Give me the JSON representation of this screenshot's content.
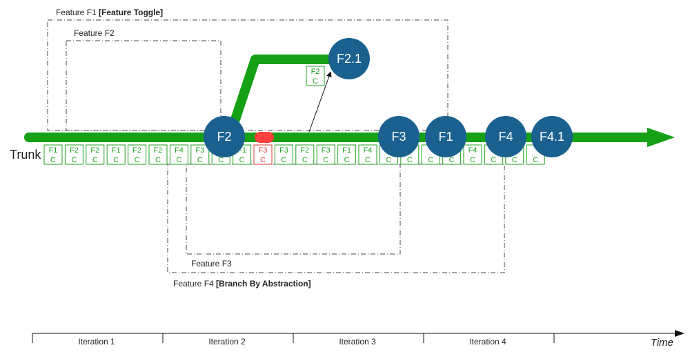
{
  "trunk_label": "Trunk",
  "time_label": "Time",
  "colors": {
    "trunk": "#16a016",
    "node": "#1a6190",
    "commit_border": "#1fa01f",
    "commit_bad": "#e23a3a",
    "bad_marker": "#ff4040"
  },
  "features": {
    "f1": {
      "name": "Feature F1 ",
      "tag": "[Feature Toggle]"
    },
    "f2": {
      "name": "Feature F2",
      "tag": ""
    },
    "f3": {
      "name": "Feature F3",
      "tag": ""
    },
    "f4": {
      "name": "Feature F4 ",
      "tag": "[Branch By Abstraction]"
    }
  },
  "nodes": [
    "F2",
    "F3",
    "F1",
    "F4",
    "F4.1"
  ],
  "branch_node": "F2.1",
  "branch_commit": {
    "feature": "F2",
    "type": "C"
  },
  "commits": [
    {
      "feature": "F1",
      "type": "C"
    },
    {
      "feature": "F2",
      "type": "C"
    },
    {
      "feature": "F2",
      "type": "C"
    },
    {
      "feature": "F1",
      "type": "C"
    },
    {
      "feature": "F2",
      "type": "C"
    },
    {
      "feature": "F2",
      "type": "C"
    },
    {
      "feature": "F4",
      "type": "C"
    },
    {
      "feature": "F3",
      "type": "C"
    },
    {
      "feature": "",
      "type": "C"
    },
    {
      "feature": "F1",
      "type": "C"
    },
    {
      "feature": "F3",
      "type": "C",
      "broken": true
    },
    {
      "feature": "F3",
      "type": "C"
    },
    {
      "feature": "F2",
      "type": "C"
    },
    {
      "feature": "F3",
      "type": "C"
    },
    {
      "feature": "F1",
      "type": "C"
    },
    {
      "feature": "F4",
      "type": "C"
    },
    {
      "feature": "",
      "type": "C"
    },
    {
      "feature": "",
      "type": "C"
    },
    {
      "feature": "",
      "type": "C"
    },
    {
      "feature": "",
      "type": "C"
    },
    {
      "feature": "F4",
      "type": "C"
    },
    {
      "feature": "",
      "type": "C"
    },
    {
      "feature": "",
      "type": "C"
    },
    {
      "feature": "",
      "type": "C"
    }
  ],
  "iterations": [
    "Iteration 1",
    "Iteration 2",
    "Iteration 3",
    "Iteration 4"
  ]
}
